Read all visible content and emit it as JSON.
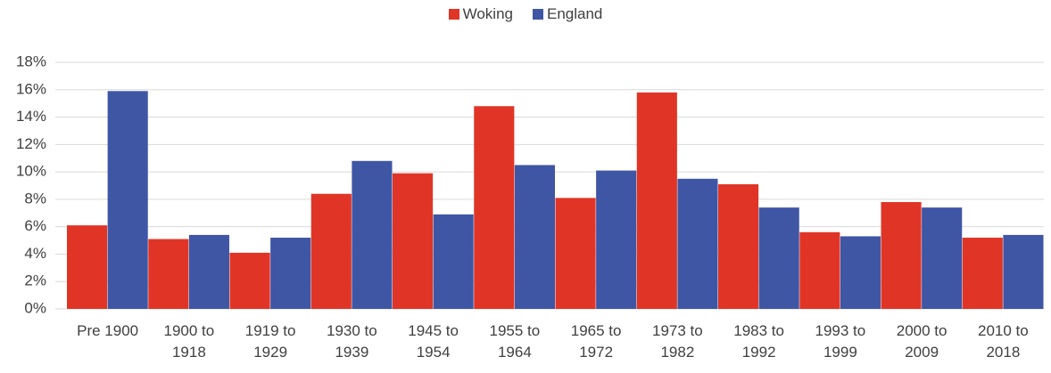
{
  "chart_data": {
    "type": "bar",
    "categories": [
      "Pre 1900",
      "1900 to 1918",
      "1919 to 1929",
      "1930 to 1939",
      "1945 to 1954",
      "1955 to 1964",
      "1965 to 1972",
      "1973 to 1982",
      "1983 to 1992",
      "1993 to 1999",
      "2000 to 2009",
      "2010 to 2018"
    ],
    "series": [
      {
        "name": "Woking",
        "color": "#e03526",
        "values": [
          6.1,
          5.1,
          4.1,
          8.4,
          9.9,
          14.8,
          8.1,
          15.8,
          9.1,
          5.6,
          7.8,
          5.2
        ]
      },
      {
        "name": "England",
        "color": "#3f56a5",
        "values": [
          15.9,
          5.4,
          5.2,
          10.8,
          6.9,
          10.5,
          10.1,
          9.5,
          7.4,
          5.3,
          7.4,
          5.4
        ]
      }
    ],
    "ylim": [
      0,
      18
    ],
    "yticks": [
      {
        "value": 0,
        "label": "0%"
      },
      {
        "value": 2,
        "label": "2%"
      },
      {
        "value": 4,
        "label": "4%"
      },
      {
        "value": 6,
        "label": "6%"
      },
      {
        "value": 8,
        "label": "8%"
      },
      {
        "value": 10,
        "label": "10%"
      },
      {
        "value": 12,
        "label": "12%"
      },
      {
        "value": 14,
        "label": "14%"
      },
      {
        "value": 16,
        "label": "16%"
      },
      {
        "value": 18,
        "label": "18%"
      }
    ],
    "grid": true,
    "legend": "top"
  }
}
